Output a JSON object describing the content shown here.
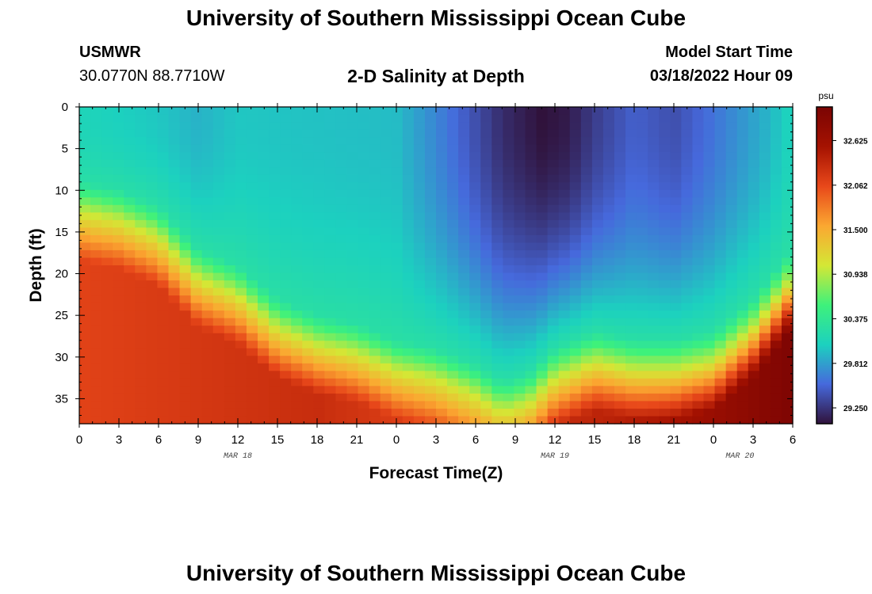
{
  "header": {
    "title": "University of Southern Mississippi Ocean Cube",
    "station": "USMWR",
    "coords": "30.0770N  88.7710W",
    "plot_title": "2-D Salinity at Depth",
    "model_label": "Model Start Time",
    "model_time": "03/18/2022 Hour 09"
  },
  "footer": {
    "title": "University of Southern Mississippi Ocean Cube"
  },
  "chart_data": {
    "type": "heatmap",
    "title": "2-D Salinity at Depth",
    "xlabel": "Forecast Time(Z)",
    "ylabel": "Depth (ft)",
    "x_ticks": [
      "0",
      "3",
      "6",
      "9",
      "12",
      "15",
      "18",
      "21",
      "0",
      "3",
      "6",
      "9",
      "12",
      "15",
      "18",
      "21",
      "0",
      "3",
      "6"
    ],
    "x_range_hours": [
      0,
      54
    ],
    "date_labels": [
      {
        "text": "MAR 18",
        "hour": 12
      },
      {
        "text": "MAR 19",
        "hour": 36
      },
      {
        "text": "MAR 20",
        "hour": 50
      }
    ],
    "y_ticks": [
      0,
      5,
      10,
      15,
      20,
      25,
      30,
      35
    ],
    "ylim": [
      0,
      38
    ],
    "y_inverted": true,
    "colorbar": {
      "unit": "psu",
      "ticks": [
        "32.625",
        "32.062",
        "31.500",
        "30.938",
        "30.375",
        "29.812",
        "29.250"
      ],
      "range": [
        29.05,
        33.05
      ],
      "colors": [
        "#30123b",
        "#4669dc",
        "#1cd1bf",
        "#3ef17b",
        "#d4e735",
        "#fba731",
        "#e8481a",
        "#a51201",
        "#7a0403"
      ]
    },
    "halocline_depth_ft": [
      {
        "hour": 0,
        "depth": 9
      },
      {
        "hour": 3,
        "depth": 10
      },
      {
        "hour": 6,
        "depth": 12
      },
      {
        "hour": 9,
        "depth": 17
      },
      {
        "hour": 12,
        "depth": 19
      },
      {
        "hour": 15,
        "depth": 23
      },
      {
        "hour": 18,
        "depth": 25
      },
      {
        "hour": 21,
        "depth": 26
      },
      {
        "hour": 24,
        "depth": 28
      },
      {
        "hour": 27,
        "depth": 29
      },
      {
        "hour": 30,
        "depth": 31
      },
      {
        "hour": 32,
        "depth": 33
      },
      {
        "hour": 34,
        "depth": 32
      },
      {
        "hour": 36,
        "depth": 29
      },
      {
        "hour": 39,
        "depth": 27
      },
      {
        "hour": 42,
        "depth": 28
      },
      {
        "hour": 45,
        "depth": 28
      },
      {
        "hour": 48,
        "depth": 27
      },
      {
        "hour": 51,
        "depth": 23
      },
      {
        "hour": 54,
        "depth": 17
      }
    ],
    "surface_salinity_psu": [
      {
        "hour": 0,
        "value": 30.1
      },
      {
        "hour": 6,
        "value": 30.0
      },
      {
        "hour": 9,
        "value": 29.9
      },
      {
        "hour": 12,
        "value": 30.0
      },
      {
        "hour": 24,
        "value": 29.95
      },
      {
        "hour": 28,
        "value": 29.6
      },
      {
        "hour": 32,
        "value": 29.2
      },
      {
        "hour": 35,
        "value": 29.05
      },
      {
        "hour": 37,
        "value": 29.1
      },
      {
        "hour": 39,
        "value": 29.3
      },
      {
        "hour": 42,
        "value": 29.5
      },
      {
        "hour": 45,
        "value": 29.4
      },
      {
        "hour": 48,
        "value": 29.6
      },
      {
        "hour": 52,
        "value": 29.9
      },
      {
        "hour": 54,
        "value": 30.1
      }
    ],
    "bottom_salinity_psu": [
      {
        "hour": 0,
        "value": 32.1
      },
      {
        "hour": 18,
        "value": 32.3
      },
      {
        "hour": 30,
        "value": 32.0
      },
      {
        "hour": 36,
        "value": 32.3
      },
      {
        "hour": 44,
        "value": 32.5
      },
      {
        "hour": 54,
        "value": 33.0
      }
    ]
  }
}
